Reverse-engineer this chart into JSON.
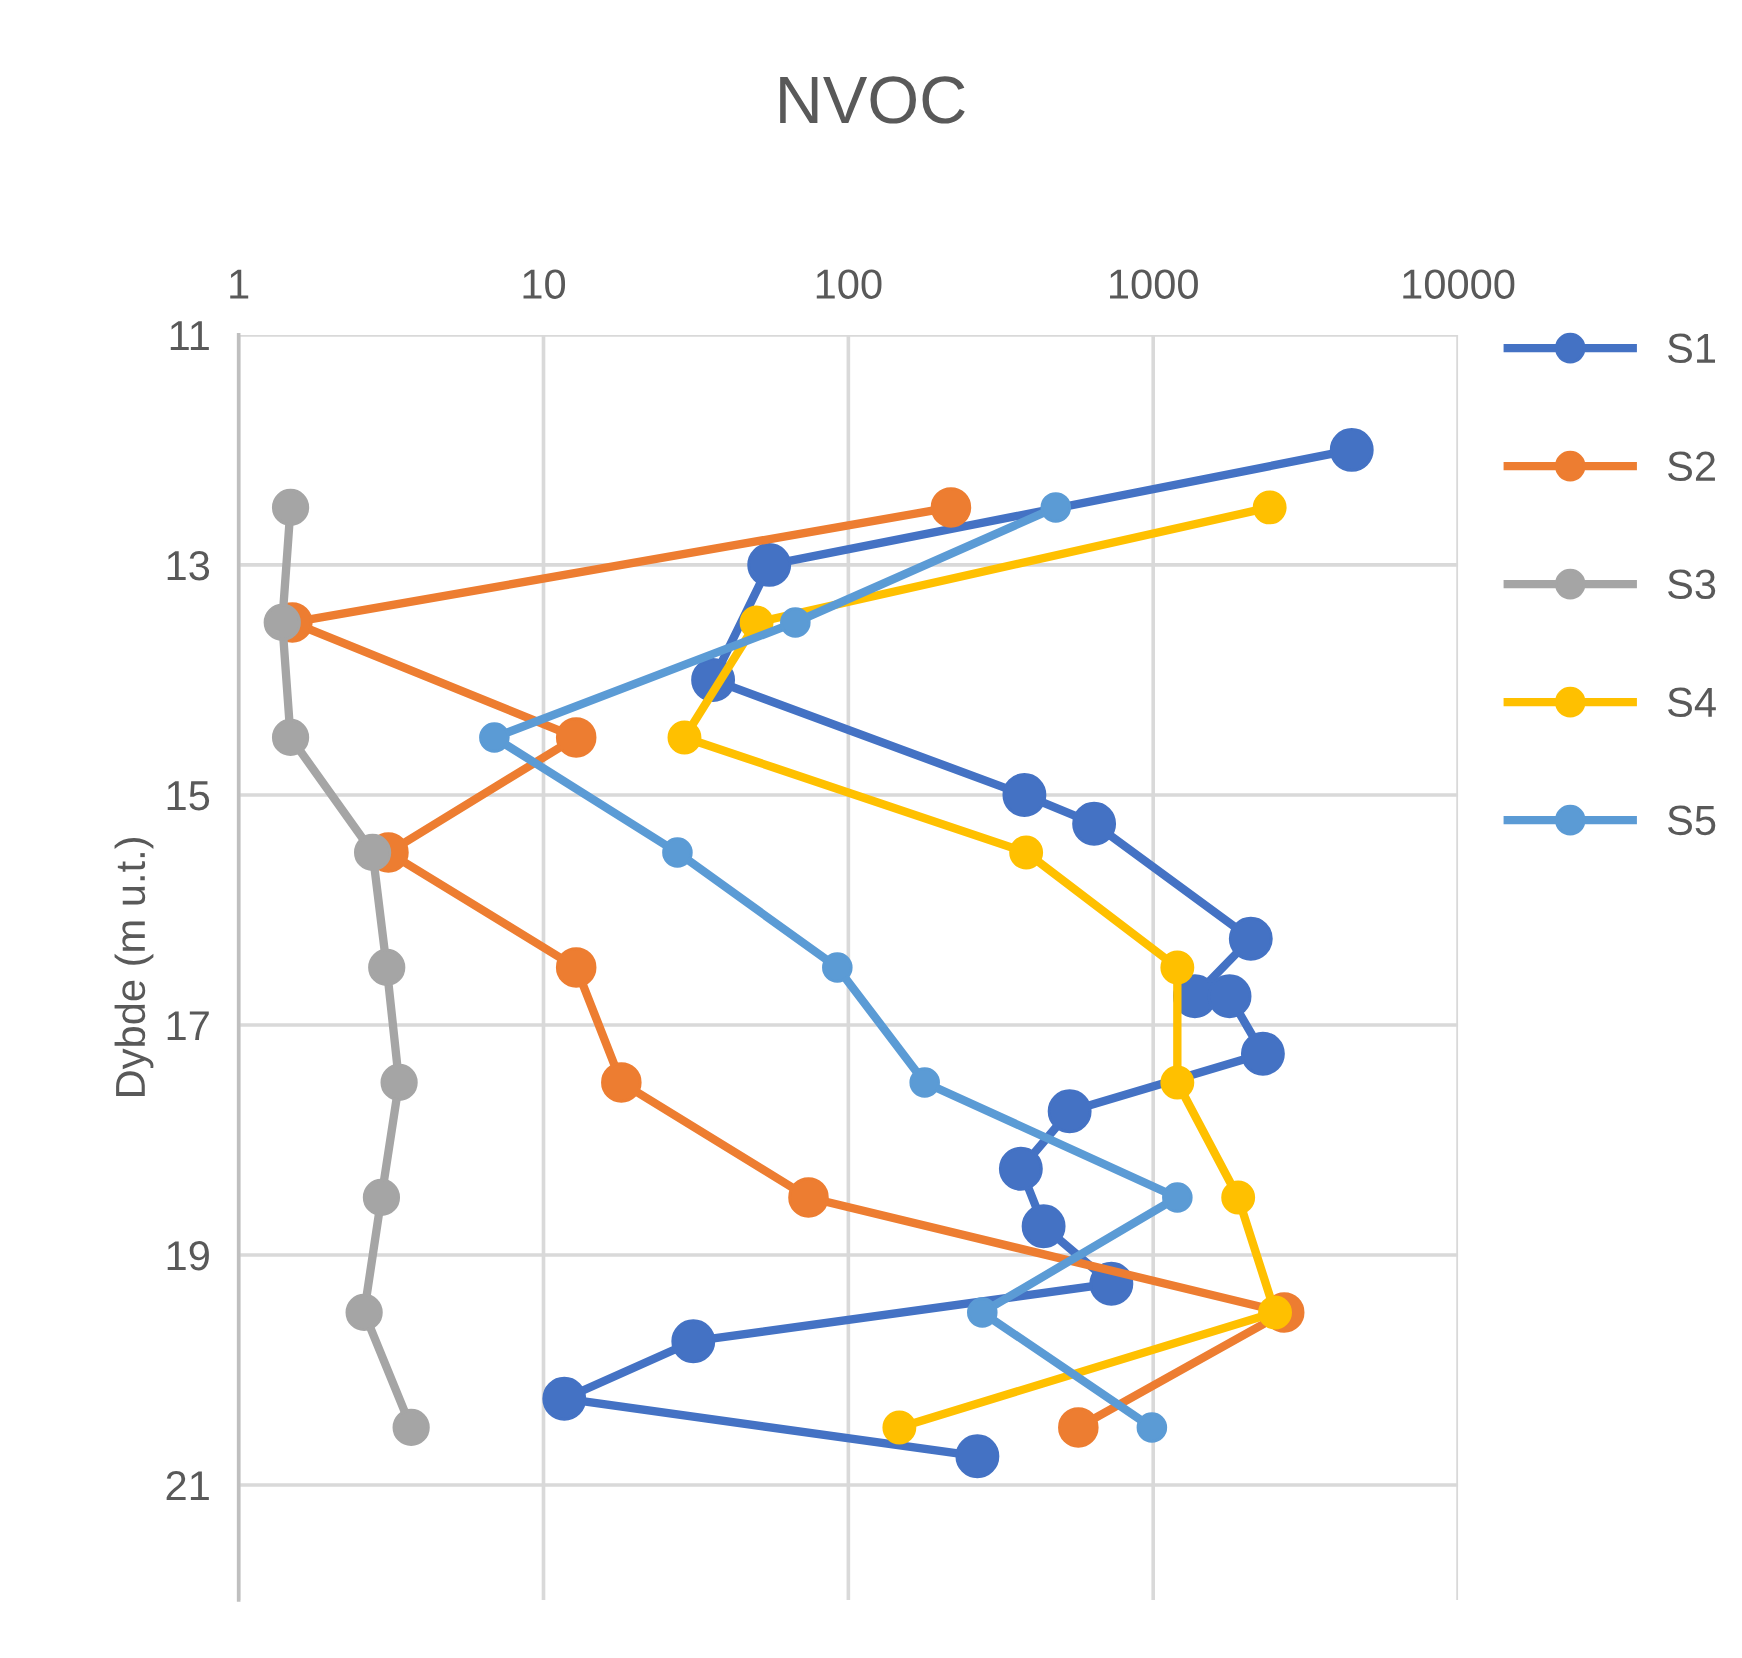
{
  "chart_data": {
    "type": "line",
    "title": "NVOC",
    "ylabel": "Dybde (m u.t.)",
    "log": "x",
    "xlim": [
      1,
      10000
    ],
    "xticks": [
      1,
      10,
      100,
      1000,
      10000
    ],
    "ylim": [
      22,
      11
    ],
    "yticks": [
      11,
      13,
      15,
      17,
      19,
      21
    ],
    "grid": true,
    "legend": "right",
    "marker": "circle",
    "line_style": "solid",
    "series": [
      {
        "name": "S1",
        "color": "#4472c4",
        "x": [
          4480,
          55,
          36,
          378,
          640,
          2090,
          1370,
          1780,
          2290,
          532,
          368,
          437,
          729,
          31,
          11.7,
          265
        ],
        "values": [
          12,
          13,
          14,
          15,
          15.25,
          16.25,
          16.75,
          16.75,
          17.25,
          17.75,
          18.25,
          18.75,
          19.25,
          19.75,
          20.25,
          20.75
        ]
      },
      {
        "name": "S2",
        "color": "#ed7d31",
        "x": [
          217,
          1.5,
          12.8,
          3.1,
          12.8,
          18,
          74,
          2690,
          568
        ],
        "values": [
          12.5,
          13.5,
          14.5,
          15.5,
          16.5,
          17.5,
          18.5,
          19.5,
          20.5
        ]
      },
      {
        "name": "S3",
        "color": "#a5a5a5",
        "x": [
          1.48,
          1.39,
          1.48,
          2.75,
          3.06,
          3.36,
          2.94,
          2.58,
          3.68
        ],
        "values": [
          12.5,
          13.5,
          14.5,
          15.5,
          16.5,
          17.5,
          18.5,
          19.5,
          20.5
        ]
      },
      {
        "name": "S4",
        "color": "#ffc000",
        "x": [
          2410,
          50,
          29,
          383,
          1200,
          1200,
          1900,
          2510,
          147
        ],
        "values": [
          12.5,
          13.5,
          14.5,
          15.5,
          16.5,
          17.5,
          18.5,
          19.5,
          20.5
        ]
      },
      {
        "name": "S5",
        "color": "#5b9bd5",
        "x": [
          479,
          67,
          6.9,
          27.5,
          92,
          178,
          1200,
          275,
          990
        ],
        "values": [
          12.5,
          13.5,
          14.5,
          15.5,
          16.5,
          17.5,
          18.5,
          19.5,
          20.5
        ]
      }
    ]
  }
}
